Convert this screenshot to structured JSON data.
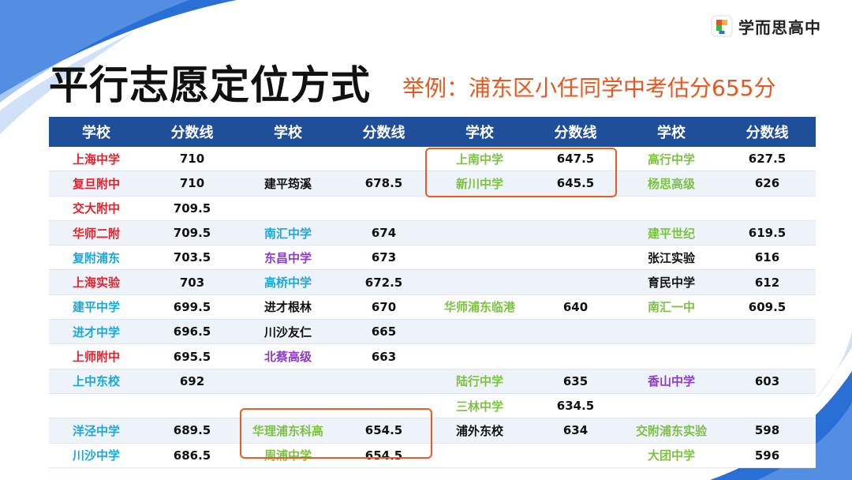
{
  "brand": {
    "name": "学而思高中",
    "logo_icon": "xueersi-logo-icon"
  },
  "title": "平行志愿定位方式",
  "subtitle": "举例：浦东区小任同学中考估分655分",
  "colors": {
    "header_bg": "#1f4e9b",
    "accent": "#ee5a23",
    "red": "#e8202a",
    "cyan": "#1aa8d8",
    "purple": "#8a3cc2",
    "green": "#7cc142"
  },
  "table": {
    "headers": [
      "学校",
      "分数线",
      "学校",
      "分数线",
      "学校",
      "分数线",
      "学校",
      "分数线"
    ],
    "rows": [
      [
        {
          "s": "上海中学",
          "c": "red"
        },
        {
          "v": "710"
        },
        {
          "s": "",
          "c": ""
        },
        {
          "v": ""
        },
        {
          "s": "上南中学",
          "c": "green"
        },
        {
          "v": "647.5"
        },
        {
          "s": "高行中学",
          "c": "green"
        },
        {
          "v": "627.5"
        }
      ],
      [
        {
          "s": "复旦附中",
          "c": "red"
        },
        {
          "v": "710"
        },
        {
          "s": "建平筠溪",
          "c": "black"
        },
        {
          "v": "678.5"
        },
        {
          "s": "新川中学",
          "c": "green"
        },
        {
          "v": "645.5"
        },
        {
          "s": "杨思高级",
          "c": "green"
        },
        {
          "v": "626"
        }
      ],
      [
        {
          "s": "交大附中",
          "c": "red"
        },
        {
          "v": "709.5"
        },
        {
          "s": "",
          "c": ""
        },
        {
          "v": ""
        },
        {
          "s": "",
          "c": ""
        },
        {
          "v": ""
        },
        {
          "s": "",
          "c": ""
        },
        {
          "v": ""
        }
      ],
      [
        {
          "s": "华师二附",
          "c": "red"
        },
        {
          "v": "709.5"
        },
        {
          "s": "南汇中学",
          "c": "cyan"
        },
        {
          "v": "674"
        },
        {
          "s": "",
          "c": ""
        },
        {
          "v": ""
        },
        {
          "s": "建平世纪",
          "c": "green"
        },
        {
          "v": "619.5"
        }
      ],
      [
        {
          "s": "复附浦东",
          "c": "cyan"
        },
        {
          "v": "703.5"
        },
        {
          "s": "东昌中学",
          "c": "purple"
        },
        {
          "v": "673"
        },
        {
          "s": "",
          "c": ""
        },
        {
          "v": ""
        },
        {
          "s": "张江实验",
          "c": "black"
        },
        {
          "v": "616"
        }
      ],
      [
        {
          "s": "上海实验",
          "c": "red"
        },
        {
          "v": "703"
        },
        {
          "s": "高桥中学",
          "c": "cyan"
        },
        {
          "v": "672.5"
        },
        {
          "s": "",
          "c": ""
        },
        {
          "v": ""
        },
        {
          "s": "育民中学",
          "c": "black"
        },
        {
          "v": "612"
        }
      ],
      [
        {
          "s": "建平中学",
          "c": "cyan"
        },
        {
          "v": "699.5"
        },
        {
          "s": "进才根林",
          "c": "black"
        },
        {
          "v": "670"
        },
        {
          "s": "华师浦东临港",
          "c": "green"
        },
        {
          "v": "640"
        },
        {
          "s": "南汇一中",
          "c": "green"
        },
        {
          "v": "609.5"
        }
      ],
      [
        {
          "s": "进才中学",
          "c": "cyan"
        },
        {
          "v": "696.5"
        },
        {
          "s": "川沙友仁",
          "c": "black"
        },
        {
          "v": "665"
        },
        {
          "s": "",
          "c": ""
        },
        {
          "v": ""
        },
        {
          "s": "",
          "c": ""
        },
        {
          "v": ""
        }
      ],
      [
        {
          "s": "上师附中",
          "c": "red"
        },
        {
          "v": "695.5"
        },
        {
          "s": "北蔡高级",
          "c": "purple"
        },
        {
          "v": "663"
        },
        {
          "s": "",
          "c": ""
        },
        {
          "v": ""
        },
        {
          "s": "",
          "c": ""
        },
        {
          "v": ""
        }
      ],
      [
        {
          "s": "上中东校",
          "c": "cyan"
        },
        {
          "v": "692"
        },
        {
          "s": "",
          "c": ""
        },
        {
          "v": ""
        },
        {
          "s": "陆行中学",
          "c": "green"
        },
        {
          "v": "635"
        },
        {
          "s": "香山中学",
          "c": "purple"
        },
        {
          "v": "603"
        }
      ],
      [
        {
          "s": "",
          "c": ""
        },
        {
          "v": ""
        },
        {
          "s": "",
          "c": ""
        },
        {
          "v": ""
        },
        {
          "s": "三林中学",
          "c": "green"
        },
        {
          "v": "634.5"
        },
        {
          "s": "",
          "c": ""
        },
        {
          "v": ""
        }
      ],
      [
        {
          "s": "洋泾中学",
          "c": "cyan"
        },
        {
          "v": "689.5"
        },
        {
          "s": "华理浦东科高",
          "c": "green"
        },
        {
          "v": "654.5"
        },
        {
          "s": "浦外东校",
          "c": "black"
        },
        {
          "v": "634"
        },
        {
          "s": "交附浦东实验",
          "c": "green"
        },
        {
          "v": "598"
        }
      ],
      [
        {
          "s": "川沙中学",
          "c": "cyan"
        },
        {
          "v": "686.5"
        },
        {
          "s": "周浦中学",
          "c": "green"
        },
        {
          "v": "654.5"
        },
        {
          "s": "",
          "c": ""
        },
        {
          "v": ""
        },
        {
          "s": "大团中学",
          "c": "green"
        },
        {
          "v": "596"
        }
      ]
    ]
  }
}
